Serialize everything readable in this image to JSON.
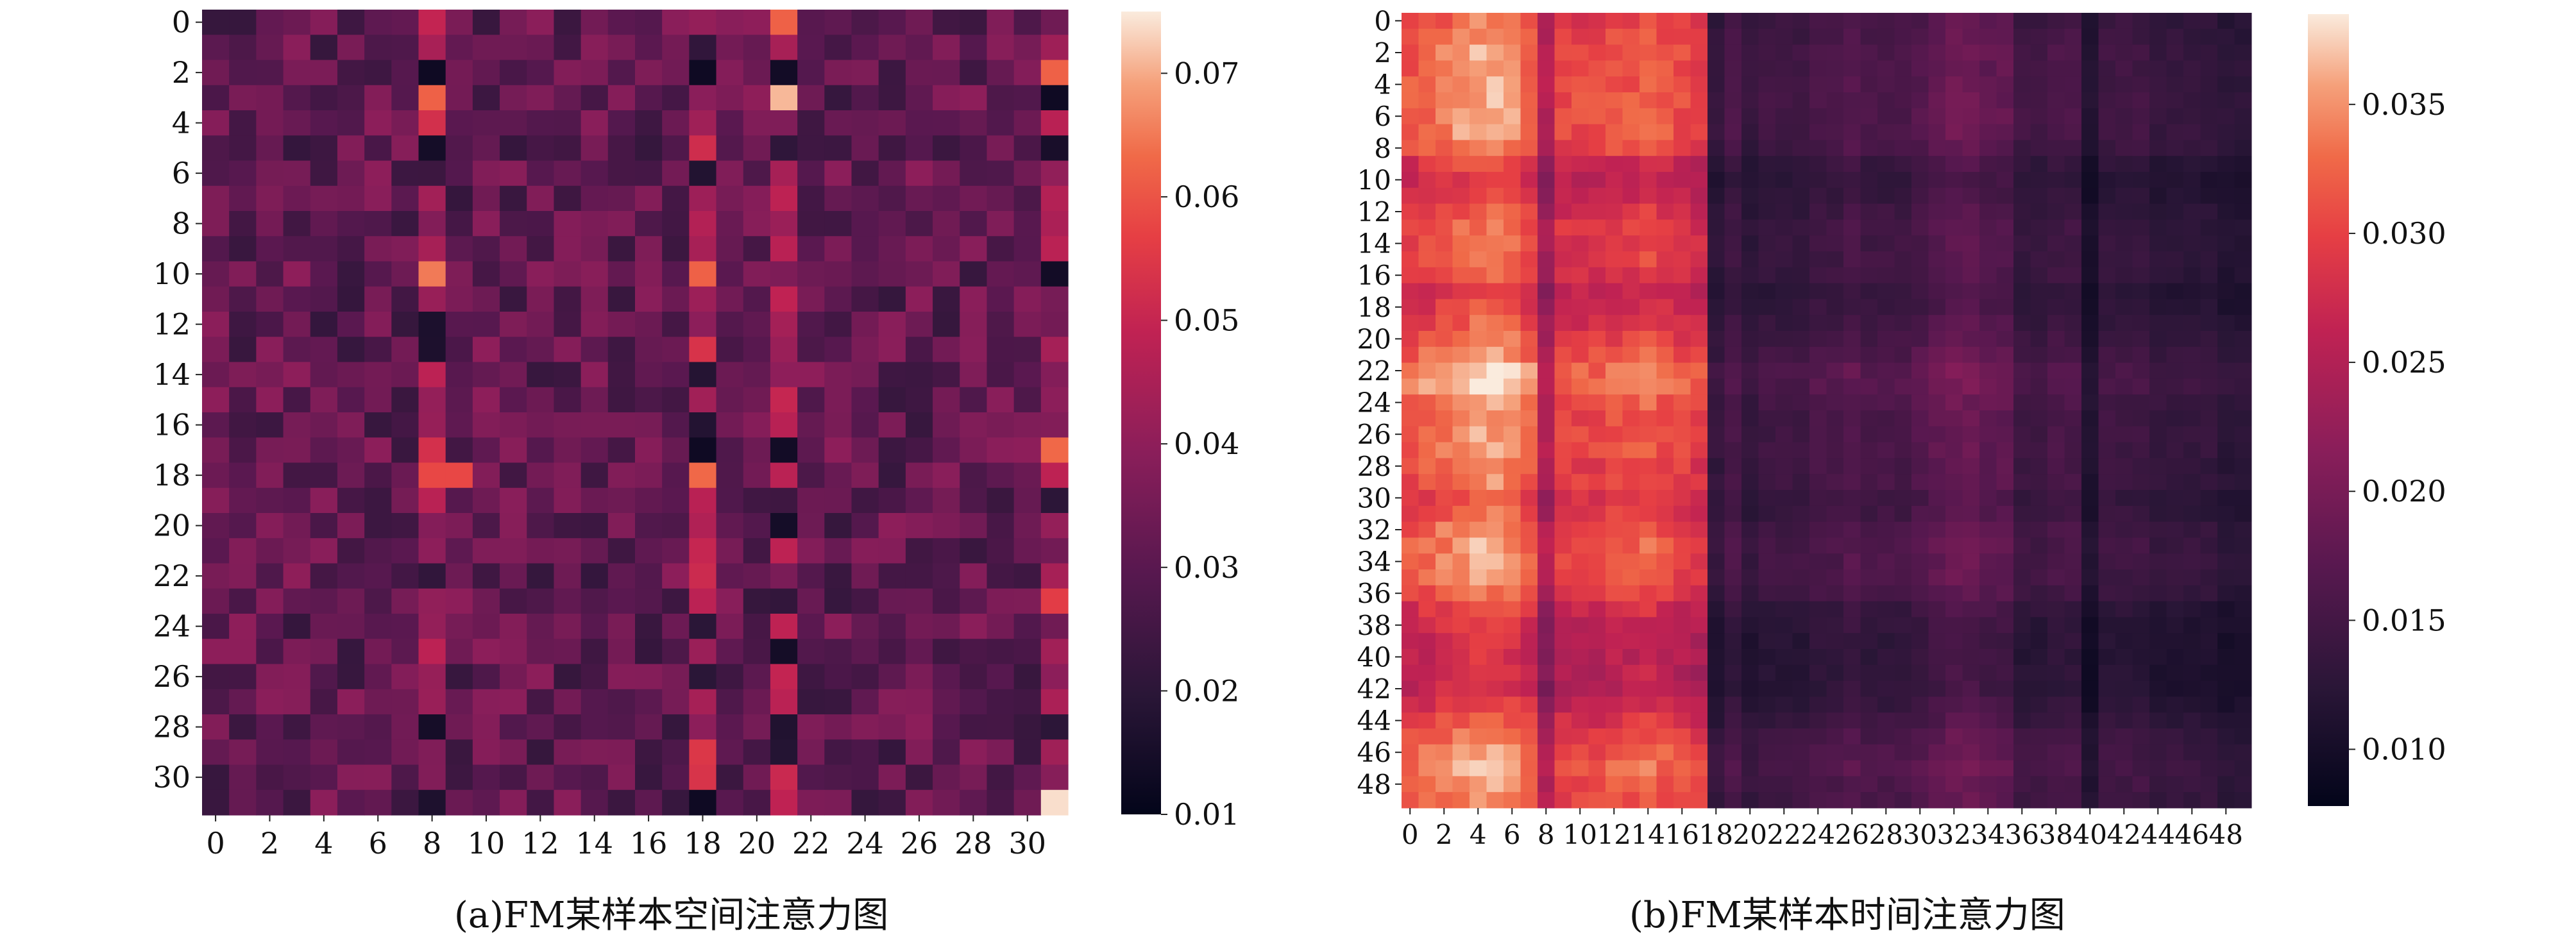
{
  "chart_data": [
    {
      "type": "heatmap",
      "caption": "(a)FM某样本空间注意力图",
      "rows": 32,
      "cols": 32,
      "x_tick_labels": [
        "0",
        "2",
        "4",
        "6",
        "8",
        "10",
        "12",
        "14",
        "16",
        "18",
        "20",
        "22",
        "24",
        "26",
        "28",
        "30"
      ],
      "y_tick_labels": [
        "0",
        "2",
        "4",
        "6",
        "8",
        "10",
        "12",
        "14",
        "16",
        "18",
        "20",
        "22",
        "24",
        "26",
        "28",
        "30"
      ],
      "colorbar": {
        "vmin": 0.01,
        "vmax": 0.075,
        "ticks": [
          "0.01",
          "0.02",
          "0.03",
          "0.04",
          "0.05",
          "0.06",
          "0.07"
        ],
        "tick_values": [
          0.01,
          0.02,
          0.03,
          0.04,
          0.05,
          0.06,
          0.07
        ]
      },
      "colormap": "rocket",
      "typical_value": 0.031,
      "highlight_columns": [
        {
          "col": 8,
          "mean": 0.045
        },
        {
          "col": 18,
          "mean": 0.047
        },
        {
          "col": 21,
          "mean": 0.044
        },
        {
          "col": 31,
          "mean": 0.042
        }
      ],
      "hot_cells": [
        {
          "row": 0,
          "col": 21,
          "value": 0.062
        },
        {
          "row": 3,
          "col": 21,
          "value": 0.071
        },
        {
          "row": 3,
          "col": 8,
          "value": 0.062
        },
        {
          "row": 10,
          "col": 8,
          "value": 0.065
        },
        {
          "row": 10,
          "col": 18,
          "value": 0.062
        },
        {
          "row": 18,
          "col": 8,
          "value": 0.058
        },
        {
          "row": 18,
          "col": 9,
          "value": 0.058
        },
        {
          "row": 18,
          "col": 18,
          "value": 0.063
        },
        {
          "row": 31,
          "col": 31,
          "value": 0.074
        },
        {
          "row": 2,
          "col": 31,
          "value": 0.062
        },
        {
          "row": 17,
          "col": 31,
          "value": 0.063
        },
        {
          "row": 23,
          "col": 31,
          "value": 0.056
        }
      ],
      "cold_cells": [
        {
          "row": 2,
          "col": 8,
          "value": 0.013
        },
        {
          "row": 2,
          "col": 18,
          "value": 0.013
        },
        {
          "row": 2,
          "col": 21,
          "value": 0.014
        },
        {
          "row": 3,
          "col": 31,
          "value": 0.013
        },
        {
          "row": 10,
          "col": 31,
          "value": 0.014
        },
        {
          "row": 17,
          "col": 18,
          "value": 0.013
        },
        {
          "row": 31,
          "col": 18,
          "value": 0.013
        }
      ]
    },
    {
      "type": "heatmap",
      "caption": "(b)FM某样本时间注意力图",
      "rows": 50,
      "cols": 50,
      "x_tick_labels": [
        "0",
        "2",
        "4",
        "6",
        "8",
        "10",
        "12",
        "14",
        "16",
        "18",
        "20",
        "22",
        "24",
        "26",
        "28",
        "30",
        "32",
        "34",
        "36",
        "38",
        "40",
        "42",
        "44",
        "46",
        "48"
      ],
      "y_tick_labels": [
        "0",
        "2",
        "4",
        "6",
        "8",
        "10",
        "12",
        "14",
        "16",
        "18",
        "20",
        "22",
        "24",
        "26",
        "28",
        "30",
        "32",
        "34",
        "36",
        "38",
        "40",
        "42",
        "44",
        "46",
        "48"
      ],
      "colorbar": {
        "vmin": 0.0078,
        "vmax": 0.0385,
        "ticks": [
          "0.010",
          "0.015",
          "0.020",
          "0.025",
          "0.030",
          "0.035"
        ],
        "tick_values": [
          0.01,
          0.015,
          0.02,
          0.025,
          0.03,
          0.035
        ]
      },
      "colormap": "rocket",
      "column_profile": [
        0.03,
        0.031,
        0.032,
        0.033,
        0.034,
        0.034,
        0.033,
        0.031,
        0.024,
        0.029,
        0.029,
        0.029,
        0.03,
        0.03,
        0.031,
        0.03,
        0.029,
        0.028,
        0.013,
        0.015,
        0.013,
        0.014,
        0.014,
        0.014,
        0.015,
        0.015,
        0.016,
        0.015,
        0.015,
        0.015,
        0.016,
        0.017,
        0.018,
        0.018,
        0.017,
        0.017,
        0.014,
        0.014,
        0.015,
        0.015,
        0.011,
        0.014,
        0.014,
        0.014,
        0.013,
        0.013,
        0.013,
        0.013,
        0.012,
        0.012
      ],
      "row_profile": [
        1.0,
        1.02,
        1.05,
        1.05,
        1.05,
        1.06,
        1.06,
        1.06,
        1.02,
        0.92,
        0.88,
        0.9,
        0.95,
        0.98,
        0.98,
        0.98,
        0.96,
        0.9,
        0.92,
        0.96,
        1.0,
        1.06,
        1.12,
        1.12,
        1.06,
        1.04,
        1.04,
        1.04,
        1.02,
        1.02,
        0.96,
        0.98,
        1.04,
        1.06,
        1.06,
        1.04,
        1.0,
        0.92,
        0.88,
        0.86,
        0.86,
        0.86,
        0.86,
        0.9,
        0.96,
        1.02,
        1.06,
        1.08,
        1.06,
        1.04
      ]
    }
  ]
}
